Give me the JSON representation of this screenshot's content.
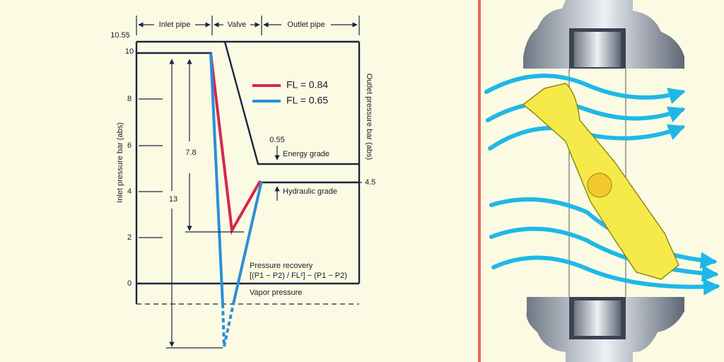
{
  "diagram": {
    "sections": [
      "Inlet pipe",
      "Valve",
      "Outlet pipe"
    ],
    "y_axis_label": "Inlet pressure bar (abs)",
    "y2_axis_label": "Outlet pressure bar (abs)",
    "yticks": [
      "0",
      "2",
      "4",
      "6",
      "8",
      "10",
      "10.55"
    ],
    "legend": [
      {
        "label": "FL = 0.84",
        "color": "#d8264c"
      },
      {
        "label": "FL = 0.65",
        "color": "#2b8fdb"
      }
    ],
    "annotations": {
      "energy_drop": "0.55",
      "energy_grade": "Energy grade",
      "hydraulic_grade": "Hydraulic grade",
      "outlet_value": "4.5",
      "drop_high": "7.8",
      "drop_low": "13",
      "recovery_title": "Pressure recovery",
      "recovery_formula": "[(P1 − P2) / FL²] − (P1 − P2)",
      "vapor": "Vapor pressure"
    }
  }
}
